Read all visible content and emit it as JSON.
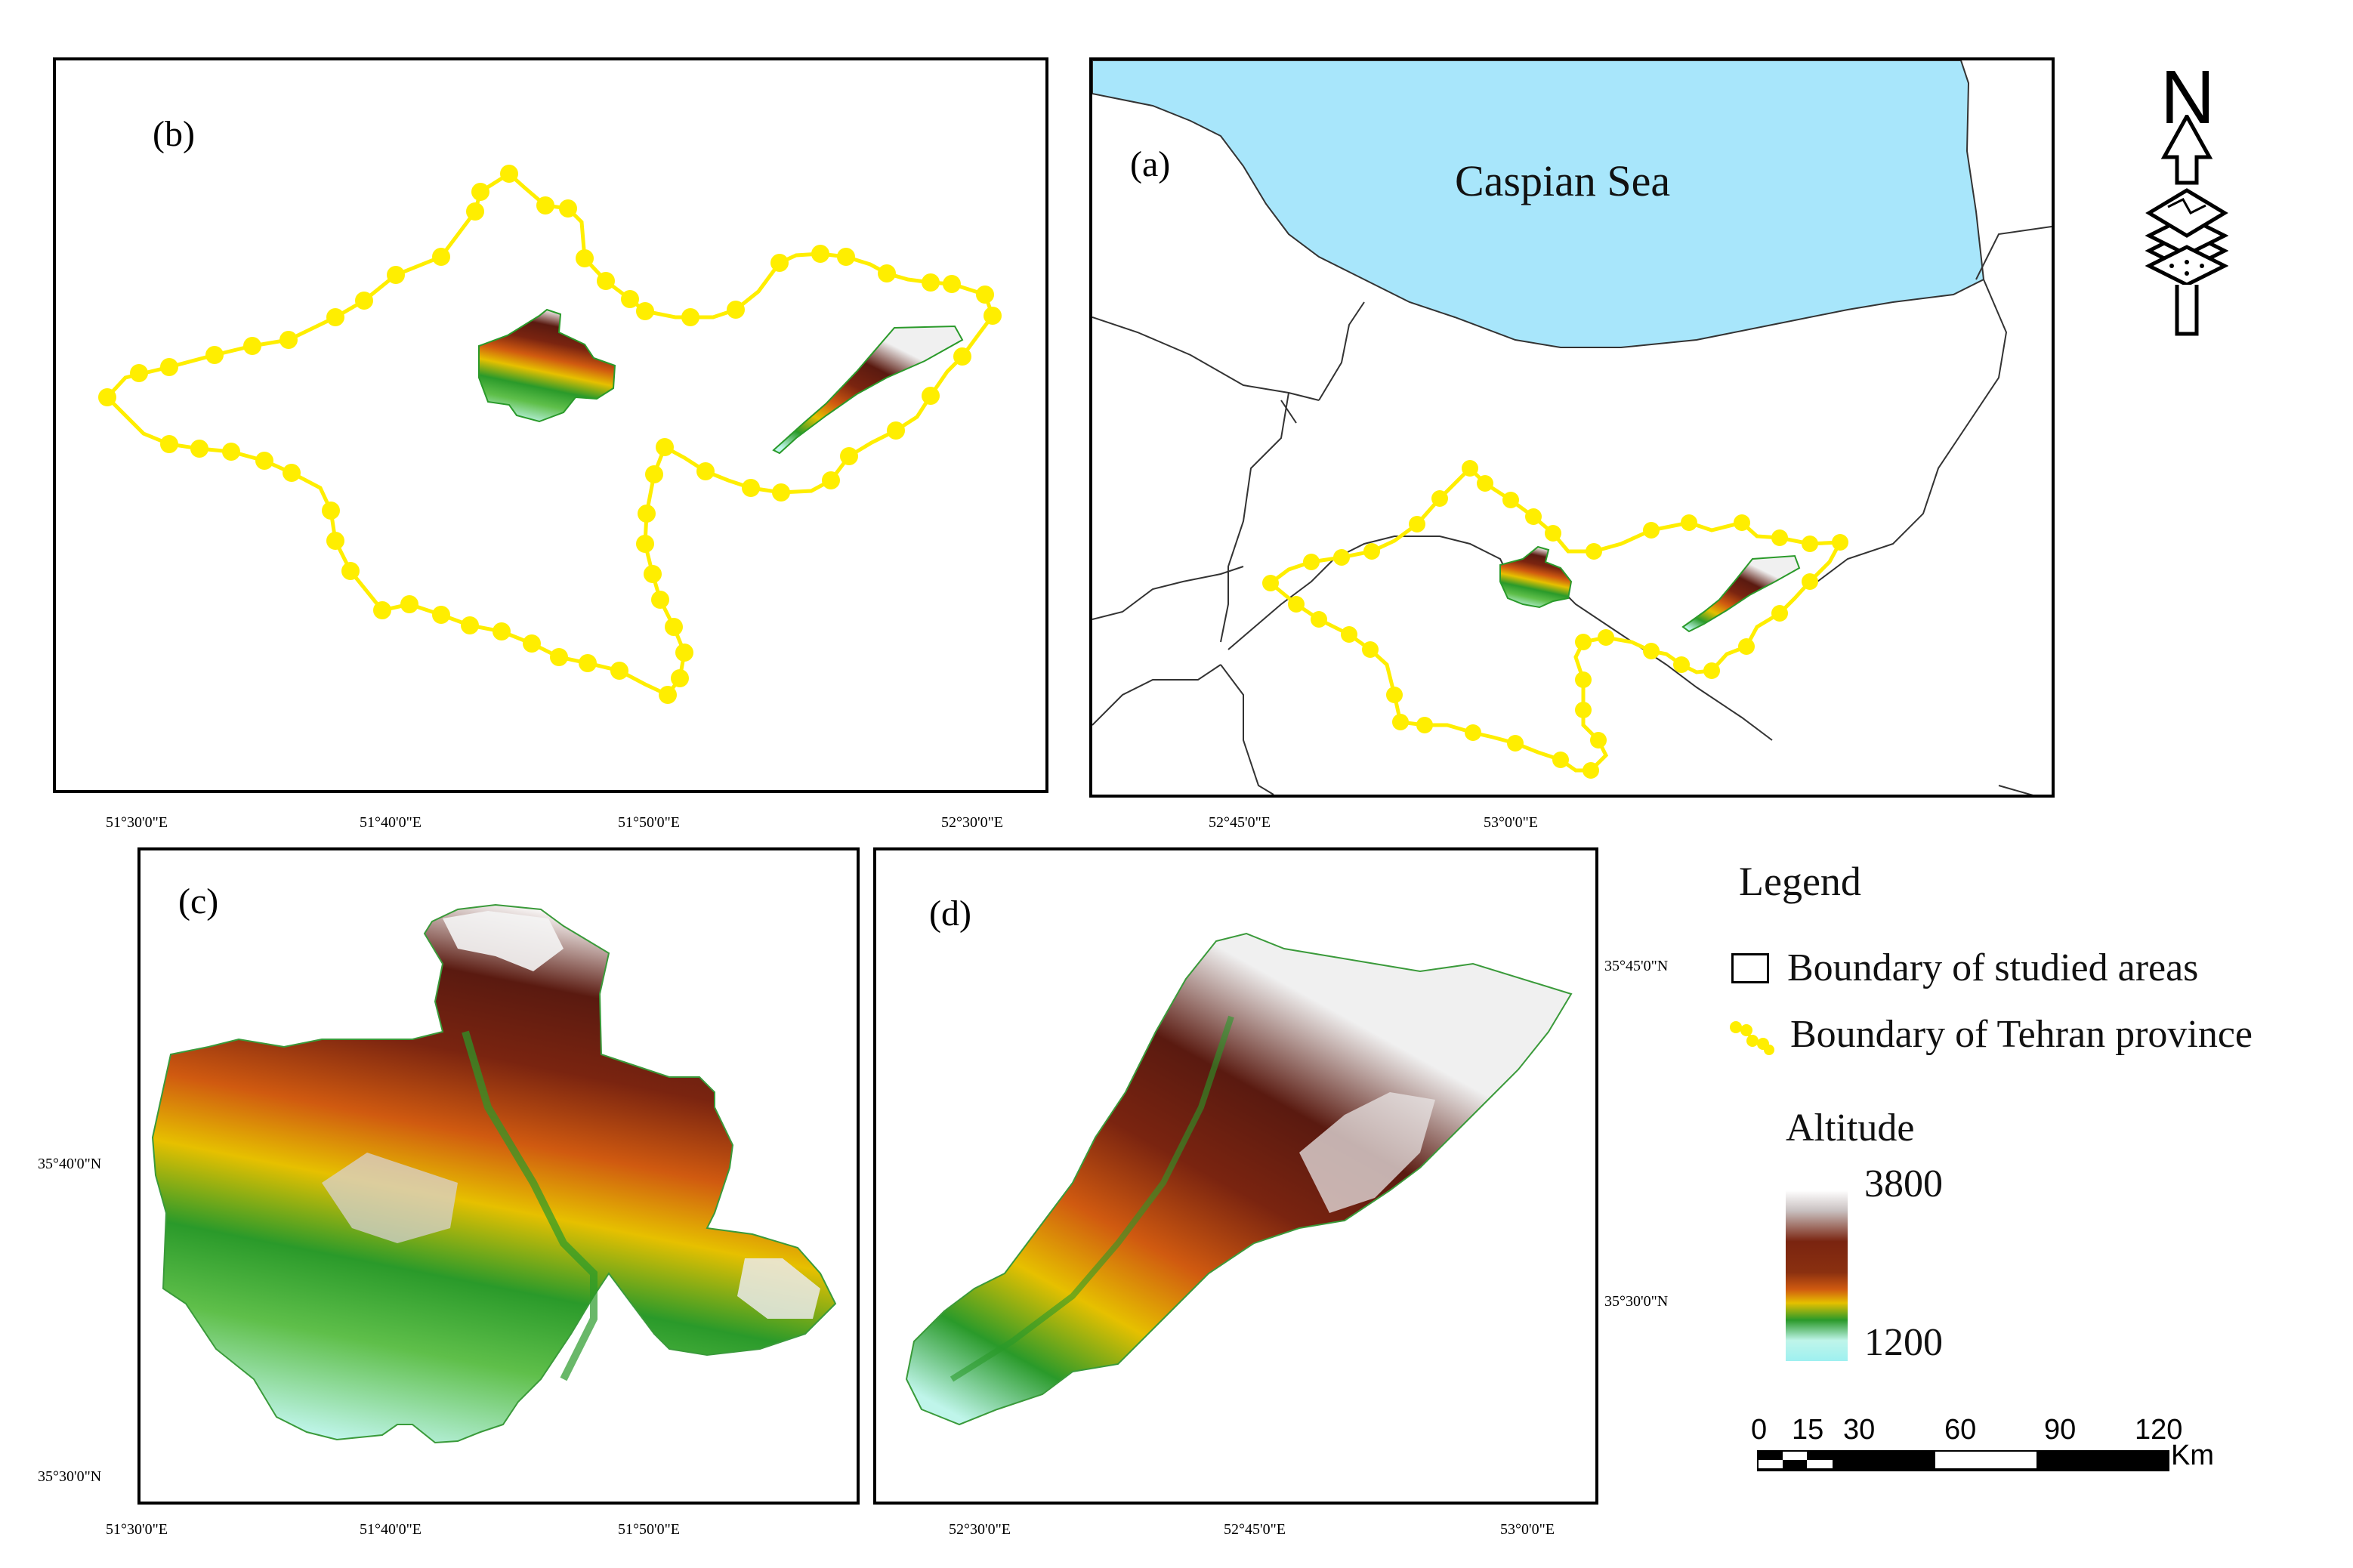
{
  "panels": {
    "b": {
      "label": "(b)"
    },
    "a": {
      "label": "(a)",
      "sea_label": "Caspian Sea"
    },
    "c": {
      "label": "(c)"
    },
    "d": {
      "label": "(d)"
    }
  },
  "north_arrow": {
    "letter": "N"
  },
  "coords_c": {
    "top": [
      "51°30'0\"E",
      "51°40'0\"E",
      "51°50'0\"E"
    ],
    "bottom": [
      "51°30'0\"E",
      "51°40'0\"E",
      "51°50'0\"E"
    ],
    "left": [
      "35°40'0\"N",
      "35°30'0\"N"
    ]
  },
  "coords_d": {
    "top": [
      "52°30'0\"E",
      "52°45'0\"E",
      "53°0'0\"E"
    ],
    "bottom": [
      "52°30'0\"E",
      "52°45'0\"E",
      "53°0'0\"E"
    ],
    "right": [
      "35°45'0\"N",
      "35°30'0\"N"
    ]
  },
  "legend": {
    "title": "Legend",
    "boundary_studied": "Boundary of studied areas",
    "boundary_tehran": "Boundary of Tehran province",
    "altitude_title": "Altitude",
    "altitude_max": "3800",
    "altitude_min": "1200"
  },
  "scale_bar": {
    "labels": [
      "0",
      "15",
      "30",
      "60",
      "90",
      "120"
    ],
    "unit": "Km"
  },
  "colors": {
    "sea": "#a8e6fb",
    "boundary_yellow": "#ffee00",
    "elev_low": "#bff5ea",
    "elev_green": "#2a9a2a",
    "elev_yellow": "#e6c000",
    "elev_orange": "#d05a10",
    "elev_brown": "#7a2410",
    "elev_high": "#ffffff"
  }
}
